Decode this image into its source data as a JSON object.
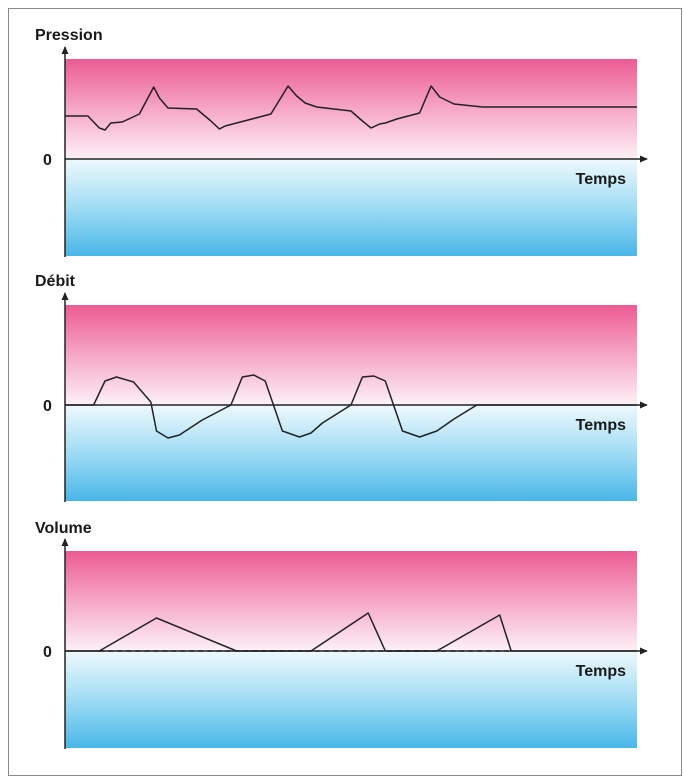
{
  "chart_data": [
    {
      "type": "line",
      "title": "Pression",
      "xlabel": "Temps",
      "zero_label": "0",
      "ylim": [
        -10,
        10
      ],
      "x": [
        0,
        0.04,
        0.06,
        0.07,
        0.08,
        0.1,
        0.13,
        0.155,
        0.165,
        0.18,
        0.23,
        0.255,
        0.27,
        0.28,
        0.3,
        0.36,
        0.39,
        0.405,
        0.42,
        0.44,
        0.5,
        0.52,
        0.535,
        0.55,
        0.56,
        0.58,
        0.62,
        0.64,
        0.655,
        0.68,
        0.73,
        1.0
      ],
      "values": [
        4.3,
        4.3,
        3.1,
        2.9,
        3.6,
        3.7,
        4.5,
        7.2,
        6.1,
        5.1,
        5.0,
        3.8,
        3.0,
        3.3,
        3.6,
        4.5,
        7.3,
        6.3,
        5.6,
        5.2,
        4.8,
        3.8,
        3.1,
        3.5,
        3.6,
        4.0,
        4.6,
        7.3,
        6.2,
        5.5,
        5.2,
        5.2
      ]
    },
    {
      "type": "line",
      "title": "Débit",
      "xlabel": "Temps",
      "zero_label": "0",
      "ylim": [
        -10,
        10
      ],
      "x": [
        0,
        0.05,
        0.07,
        0.09,
        0.12,
        0.15,
        0.16,
        0.18,
        0.2,
        0.24,
        0.29,
        0.31,
        0.33,
        0.35,
        0.38,
        0.41,
        0.43,
        0.45,
        0.5,
        0.52,
        0.54,
        0.56,
        0.59,
        0.62,
        0.65,
        0.68,
        0.72,
        0.75,
        1.0
      ],
      "values": [
        0,
        0,
        2.4,
        2.8,
        2.3,
        0.3,
        -2.6,
        -3.3,
        -3.0,
        -1.5,
        0,
        2.8,
        3.0,
        2.4,
        -2.6,
        -3.2,
        -2.8,
        -1.8,
        0,
        2.8,
        2.9,
        2.4,
        -2.6,
        -3.2,
        -2.6,
        -1.4,
        0,
        0,
        0
      ]
    },
    {
      "type": "line",
      "title": "Volume",
      "xlabel": "Temps",
      "zero_label": "0",
      "ylim": [
        -10,
        10
      ],
      "x": [
        0,
        0.06,
        0.16,
        0.3,
        0.33,
        0.4,
        0.43,
        0.53,
        0.56,
        0.65,
        0.76,
        0.78,
        1.0
      ],
      "values": [
        0,
        0,
        3.3,
        0,
        0,
        0,
        0,
        3.8,
        0,
        0,
        3.6,
        0,
        0
      ]
    }
  ]
}
